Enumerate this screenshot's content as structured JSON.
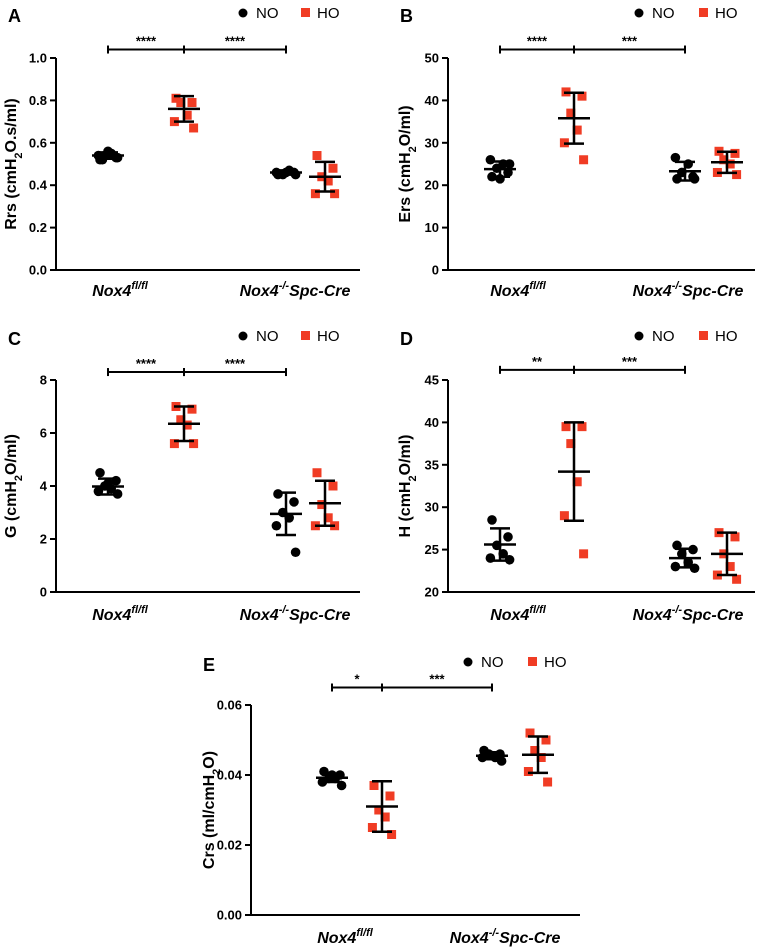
{
  "legend": {
    "no_label": "NO",
    "ho_label": "HO",
    "no_color": "#000000",
    "ho_color": "#f03c24"
  },
  "categories": [
    {
      "main": "Nox4",
      "sup": "fl/fl",
      "rest": ""
    },
    {
      "main": "Nox4",
      "sup": "-/-",
      "rest": "Spc-Cre"
    }
  ],
  "chart_data": [
    {
      "id": "A",
      "type": "scatter",
      "letter": "A",
      "ylabel": {
        "pre": "Rrs (cmH",
        "sub": "2",
        "post": "O.s/ml)"
      },
      "ylim": [
        0,
        1.0
      ],
      "ticks": [
        "0.0",
        "0.2",
        "0.4",
        "0.6",
        "0.8",
        "1.0"
      ],
      "tick_values": [
        0,
        0.2,
        0.4,
        0.6,
        0.8,
        1.0
      ],
      "groups": [
        {
          "group": "NO",
          "category": 0,
          "points": [
            0.52,
            0.53,
            0.54,
            0.55,
            0.54,
            0.53,
            0.56,
            0.52
          ],
          "mean": 0.54,
          "sd": 0.015
        },
        {
          "group": "HO",
          "category": 0,
          "points": [
            0.81,
            0.79,
            0.79,
            0.73,
            0.7,
            0.67
          ],
          "mean": 0.76,
          "sd": 0.06
        },
        {
          "group": "NO",
          "category": 1,
          "points": [
            0.45,
            0.46,
            0.45,
            0.47,
            0.46,
            0.45,
            0.46
          ],
          "mean": 0.46,
          "sd": 0.01
        },
        {
          "group": "HO",
          "category": 1,
          "points": [
            0.54,
            0.48,
            0.44,
            0.42,
            0.36,
            0.36
          ],
          "mean": 0.44,
          "sd": 0.07
        }
      ],
      "significance": [
        {
          "label": "****",
          "from": "NO-0",
          "to": "HO-0",
          "y": 1.04
        },
        {
          "label": "****",
          "from": "HO-0",
          "to": "NO-1",
          "y": 1.04
        }
      ]
    },
    {
      "id": "B",
      "type": "scatter",
      "letter": "B",
      "ylabel": {
        "pre": "Ers (cmH",
        "sub": "2",
        "post": "O/ml)"
      },
      "ylim": [
        0,
        50
      ],
      "ticks": [
        "0",
        "10",
        "20",
        "30",
        "40",
        "50"
      ],
      "tick_values": [
        0,
        10,
        20,
        30,
        40,
        50
      ],
      "groups": [
        {
          "group": "NO",
          "category": 0,
          "points": [
            22,
            23,
            24,
            25,
            26,
            25,
            21.5
          ],
          "mean": 23.8,
          "sd": 1.8
        },
        {
          "group": "HO",
          "category": 0,
          "points": [
            42,
            41,
            37,
            33,
            30,
            26
          ],
          "mean": 35.8,
          "sd": 6
        },
        {
          "group": "NO",
          "category": 1,
          "points": [
            21.5,
            22,
            23,
            25,
            26.5,
            21.5
          ],
          "mean": 23.3,
          "sd": 2.2
        },
        {
          "group": "HO",
          "category": 1,
          "points": [
            28,
            27.5,
            26,
            25,
            23,
            22.5
          ],
          "mean": 25.4,
          "sd": 2.5
        }
      ],
      "significance": [
        {
          "label": "****",
          "from": "NO-0",
          "to": "HO-0",
          "y": 52
        },
        {
          "label": "***",
          "from": "HO-0",
          "to": "NO-1",
          "y": 52
        }
      ]
    },
    {
      "id": "C",
      "type": "scatter",
      "letter": "C",
      "ylabel": {
        "pre": "G (cmH",
        "sub": "2",
        "post": "O/ml)"
      },
      "ylim": [
        0,
        8
      ],
      "ticks": [
        "0",
        "2",
        "4",
        "6",
        "8"
      ],
      "tick_values": [
        0,
        2,
        4,
        6,
        8
      ],
      "groups": [
        {
          "group": "NO",
          "category": 0,
          "points": [
            4.5,
            4.2,
            4.0,
            3.9,
            3.8,
            3.7,
            4.1
          ],
          "mean": 3.98,
          "sd": 0.3
        },
        {
          "group": "HO",
          "category": 0,
          "points": [
            7.0,
            6.9,
            6.5,
            6.3,
            5.6,
            5.6
          ],
          "mean": 6.35,
          "sd": 0.65
        },
        {
          "group": "NO",
          "category": 1,
          "points": [
            3.7,
            3.4,
            3.0,
            2.8,
            2.5,
            1.5
          ],
          "mean": 2.95,
          "sd": 0.8
        },
        {
          "group": "HO",
          "category": 1,
          "points": [
            4.5,
            4.0,
            3.3,
            2.8,
            2.5,
            2.5
          ],
          "mean": 3.35,
          "sd": 0.85
        }
      ],
      "significance": [
        {
          "label": "****",
          "from": "NO-0",
          "to": "HO-0",
          "y": 8.3
        },
        {
          "label": "****",
          "from": "HO-0",
          "to": "NO-1",
          "y": 8.3
        }
      ]
    },
    {
      "id": "D",
      "type": "scatter",
      "letter": "D",
      "ylabel": {
        "pre": "H (cmH",
        "sub": "2",
        "post": "O/ml)"
      },
      "ylim": [
        20,
        45
      ],
      "ticks": [
        "20",
        "25",
        "30",
        "35",
        "40",
        "45"
      ],
      "tick_values": [
        20,
        25,
        30,
        35,
        40,
        45
      ],
      "groups": [
        {
          "group": "NO",
          "category": 0,
          "points": [
            28.5,
            26.5,
            25.5,
            24.5,
            24,
            23.8
          ],
          "mean": 25.6,
          "sd": 1.9
        },
        {
          "group": "HO",
          "category": 0,
          "points": [
            39.5,
            39.5,
            37.5,
            33,
            29,
            24.5
          ],
          "mean": 34.2,
          "sd": 5.8
        },
        {
          "group": "NO",
          "category": 1,
          "points": [
            25.5,
            25,
            24.5,
            23.5,
            23,
            22.8
          ],
          "mean": 24.0,
          "sd": 1.1
        },
        {
          "group": "HO",
          "category": 1,
          "points": [
            27,
            26.5,
            24.5,
            23,
            22,
            21.5
          ],
          "mean": 24.5,
          "sd": 2.5
        }
      ],
      "significance": [
        {
          "label": "**",
          "from": "NO-0",
          "to": "HO-0",
          "y": 46.2
        },
        {
          "label": "***",
          "from": "HO-0",
          "to": "NO-1",
          "y": 46.2
        }
      ]
    },
    {
      "id": "E",
      "type": "scatter",
      "letter": "E",
      "ylabel": {
        "pre": "Crs (ml/cmH",
        "sub": "2",
        "post": "O)"
      },
      "ylim": [
        0,
        0.06
      ],
      "ticks": [
        "0.00",
        "0.02",
        "0.04",
        "0.06"
      ],
      "tick_values": [
        0,
        0.02,
        0.04,
        0.06
      ],
      "groups": [
        {
          "group": "NO",
          "category": 0,
          "points": [
            0.041,
            0.04,
            0.039,
            0.039,
            0.038,
            0.037,
            0.04
          ],
          "mean": 0.0392,
          "sd": 0.0012
        },
        {
          "group": "HO",
          "category": 0,
          "points": [
            0.037,
            0.034,
            0.03,
            0.028,
            0.025,
            0.023
          ],
          "mean": 0.031,
          "sd": 0.0072
        },
        {
          "group": "NO",
          "category": 1,
          "points": [
            0.047,
            0.046,
            0.046,
            0.045,
            0.045,
            0.044
          ],
          "mean": 0.0455,
          "sd": 0.001
        },
        {
          "group": "HO",
          "category": 1,
          "points": [
            0.052,
            0.05,
            0.047,
            0.045,
            0.041,
            0.038
          ],
          "mean": 0.0458,
          "sd": 0.0052
        }
      ],
      "significance": [
        {
          "label": "*",
          "from": "NO-0",
          "to": "HO-0",
          "y": 0.065
        },
        {
          "label": "***",
          "from": "HO-0",
          "to": "NO-1",
          "y": 0.065
        }
      ]
    }
  ]
}
